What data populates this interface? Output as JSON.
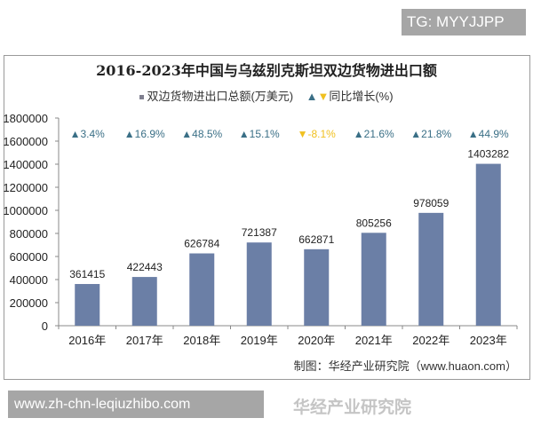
{
  "watermark_top": "TG: MYYJJPP",
  "watermark_bottom": "www.zh-chn-leqiuzhibo.com",
  "source": "制图：华经产业研究院（www.huaon.com）",
  "logo_watermark": "华经产业研究院",
  "chart_data": {
    "type": "bar",
    "title": "2016-2023年中国与乌兹别克斯坦双边货物进出口额",
    "legend": {
      "bar": "双边货物进出口总额(万美元)",
      "growth": "同比增长(%)",
      "placement": "top"
    },
    "categories": [
      "2016年",
      "2017年",
      "2018年",
      "2019年",
      "2020年",
      "2021年",
      "2022年",
      "2023年"
    ],
    "series": [
      {
        "name": "双边货物进出口总额(万美元)",
        "values": [
          361415,
          422443,
          626784,
          721387,
          662871,
          805256,
          978059,
          1403282
        ]
      },
      {
        "name": "同比增长(%)",
        "values": [
          3.4,
          16.9,
          48.5,
          15.1,
          -8.1,
          21.6,
          21.8,
          44.9
        ]
      }
    ],
    "growth_labels": [
      "▲3.4%",
      "▲16.9%",
      "▲48.5%",
      "▲15.1%",
      "▼-8.1%",
      "▲21.6%",
      "▲21.8%",
      "▲44.9%"
    ],
    "yticks": [
      0,
      200000,
      400000,
      600000,
      800000,
      1000000,
      1200000,
      1400000,
      1600000,
      1800000
    ],
    "ylim": [
      0,
      1800000
    ],
    "grid": false,
    "colors": {
      "bar": "#6b7fa6",
      "up": "#3a6f86",
      "down": "#f0c020"
    }
  }
}
